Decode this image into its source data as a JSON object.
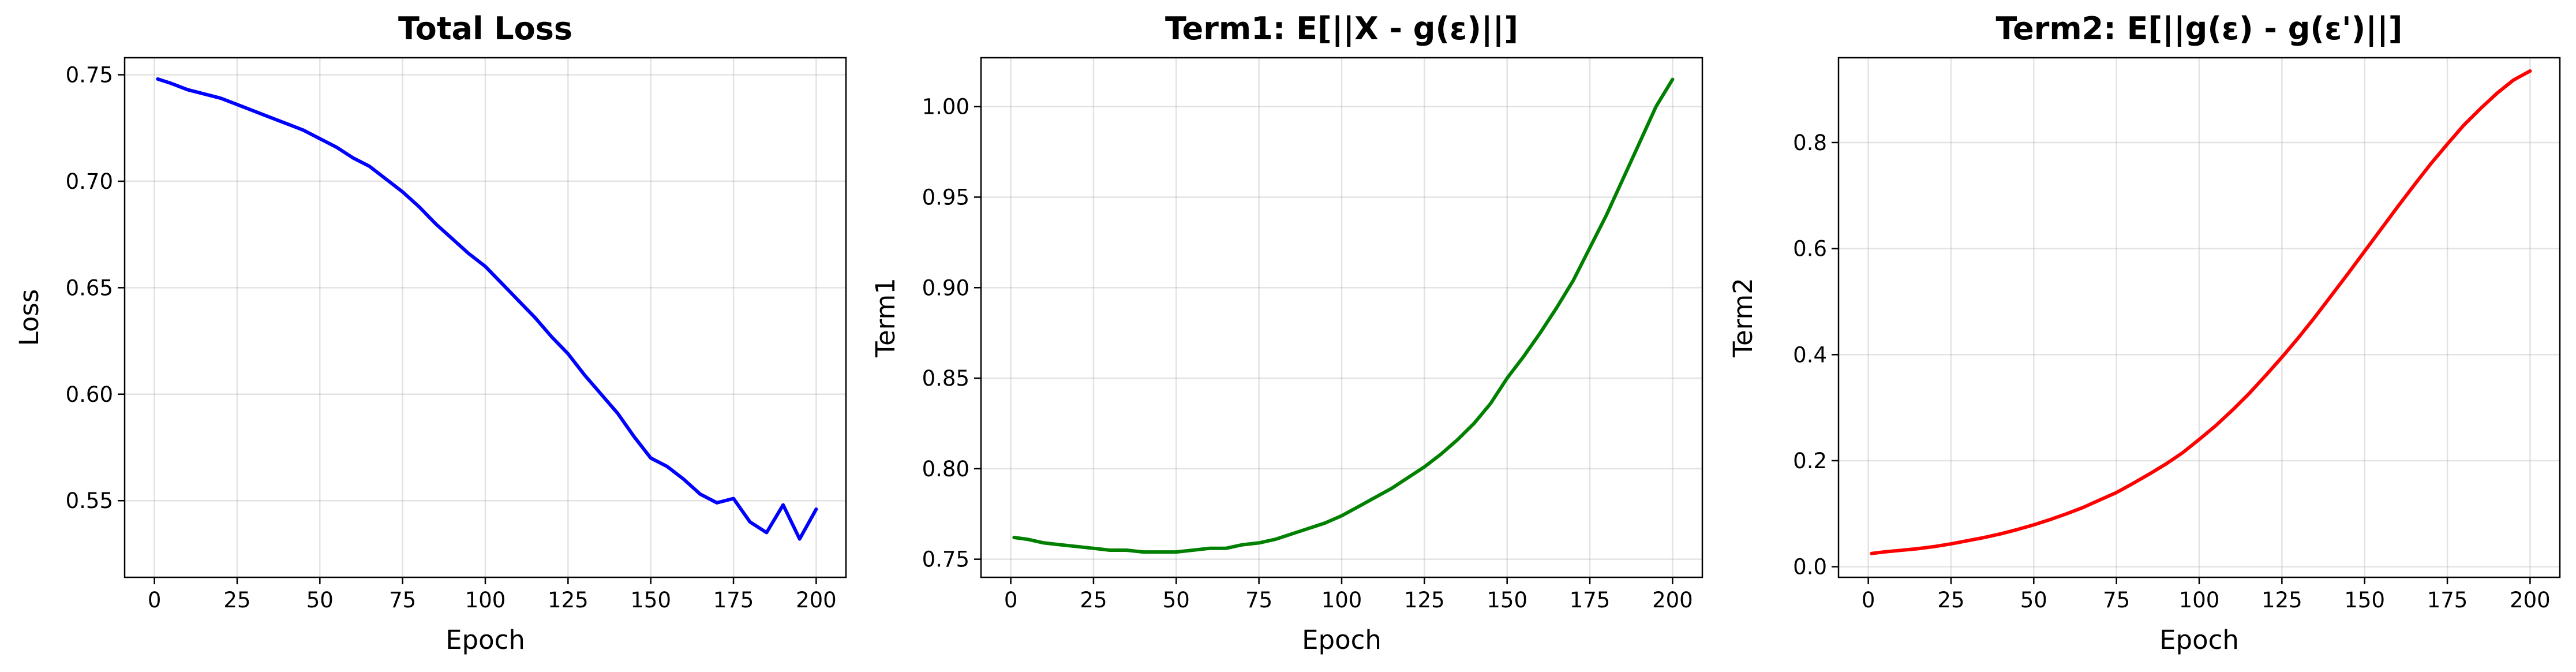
{
  "chart_data": [
    {
      "type": "line",
      "title": "Total Loss",
      "xlabel": "Epoch",
      "ylabel": "Loss",
      "color": "#0000ff",
      "grid": true,
      "xlim": [
        -9,
        209
      ],
      "ylim": [
        0.514,
        0.758
      ],
      "xticks": [
        "0",
        "25",
        "50",
        "75",
        "100",
        "125",
        "150",
        "175",
        "200"
      ],
      "yticks": [
        "0.55",
        "0.60",
        "0.65",
        "0.70",
        "0.75"
      ],
      "series": [
        {
          "x": [
            1,
            5,
            10,
            15,
            20,
            25,
            30,
            35,
            40,
            45,
            50,
            55,
            60,
            65,
            70,
            75,
            80,
            85,
            90,
            95,
            100,
            105,
            110,
            115,
            120,
            125,
            130,
            135,
            140,
            145,
            150,
            155,
            160,
            165,
            170,
            175,
            180,
            185,
            190,
            195,
            200
          ],
          "y": [
            0.748,
            0.746,
            0.743,
            0.741,
            0.739,
            0.736,
            0.733,
            0.73,
            0.727,
            0.724,
            0.72,
            0.716,
            0.711,
            0.707,
            0.701,
            0.695,
            0.688,
            0.68,
            0.673,
            0.666,
            0.66,
            0.652,
            0.644,
            0.636,
            0.627,
            0.619,
            0.609,
            0.6,
            0.591,
            0.58,
            0.57,
            0.566,
            0.56,
            0.553,
            0.549,
            0.551,
            0.54,
            0.535,
            0.548,
            0.532,
            0.546
          ]
        }
      ]
    },
    {
      "type": "line",
      "title": "Term1: E[||X - g(ε)||]",
      "xlabel": "Epoch",
      "ylabel": "Term1",
      "color": "#008000",
      "grid": true,
      "xlim": [
        -9,
        209
      ],
      "ylim": [
        0.74,
        1.027
      ],
      "xticks": [
        "0",
        "25",
        "50",
        "75",
        "100",
        "125",
        "150",
        "175",
        "200"
      ],
      "yticks": [
        "0.75",
        "0.80",
        "0.85",
        "0.90",
        "0.95",
        "1.00"
      ],
      "series": [
        {
          "x": [
            1,
            5,
            10,
            15,
            20,
            25,
            30,
            35,
            40,
            45,
            50,
            55,
            60,
            65,
            70,
            75,
            80,
            85,
            90,
            95,
            100,
            105,
            110,
            115,
            120,
            125,
            130,
            135,
            140,
            145,
            150,
            155,
            160,
            165,
            170,
            175,
            180,
            185,
            190,
            195,
            200
          ],
          "y": [
            0.762,
            0.761,
            0.759,
            0.758,
            0.757,
            0.756,
            0.755,
            0.755,
            0.754,
            0.754,
            0.754,
            0.755,
            0.756,
            0.756,
            0.758,
            0.759,
            0.761,
            0.764,
            0.767,
            0.77,
            0.774,
            0.779,
            0.784,
            0.789,
            0.795,
            0.801,
            0.808,
            0.816,
            0.825,
            0.836,
            0.85,
            0.862,
            0.875,
            0.889,
            0.904,
            0.922,
            0.94,
            0.96,
            0.98,
            1.0,
            1.015
          ]
        }
      ]
    },
    {
      "type": "line",
      "title": "Term2: E[||g(ε) - g(ε')||]",
      "xlabel": "Epoch",
      "ylabel": "Term2",
      "color": "#ff0000",
      "grid": true,
      "xlim": [
        -9,
        209
      ],
      "ylim": [
        -0.02,
        0.96
      ],
      "xticks": [
        "0",
        "25",
        "50",
        "75",
        "100",
        "125",
        "150",
        "175",
        "200"
      ],
      "yticks": [
        "0.0",
        "0.2",
        "0.4",
        "0.6",
        "0.8"
      ],
      "series": [
        {
          "x": [
            1,
            5,
            10,
            15,
            20,
            25,
            30,
            35,
            40,
            45,
            50,
            55,
            60,
            65,
            70,
            75,
            80,
            85,
            90,
            95,
            100,
            105,
            110,
            115,
            120,
            125,
            130,
            135,
            140,
            145,
            150,
            155,
            160,
            165,
            170,
            175,
            180,
            185,
            190,
            195,
            200
          ],
          "y": [
            0.025,
            0.028,
            0.031,
            0.034,
            0.038,
            0.043,
            0.049,
            0.055,
            0.062,
            0.07,
            0.079,
            0.089,
            0.1,
            0.112,
            0.126,
            0.14,
            0.157,
            0.175,
            0.194,
            0.215,
            0.24,
            0.266,
            0.295,
            0.326,
            0.36,
            0.395,
            0.432,
            0.471,
            0.512,
            0.553,
            0.595,
            0.637,
            0.679,
            0.72,
            0.76,
            0.797,
            0.833,
            0.864,
            0.893,
            0.918,
            0.935
          ]
        }
      ]
    }
  ]
}
